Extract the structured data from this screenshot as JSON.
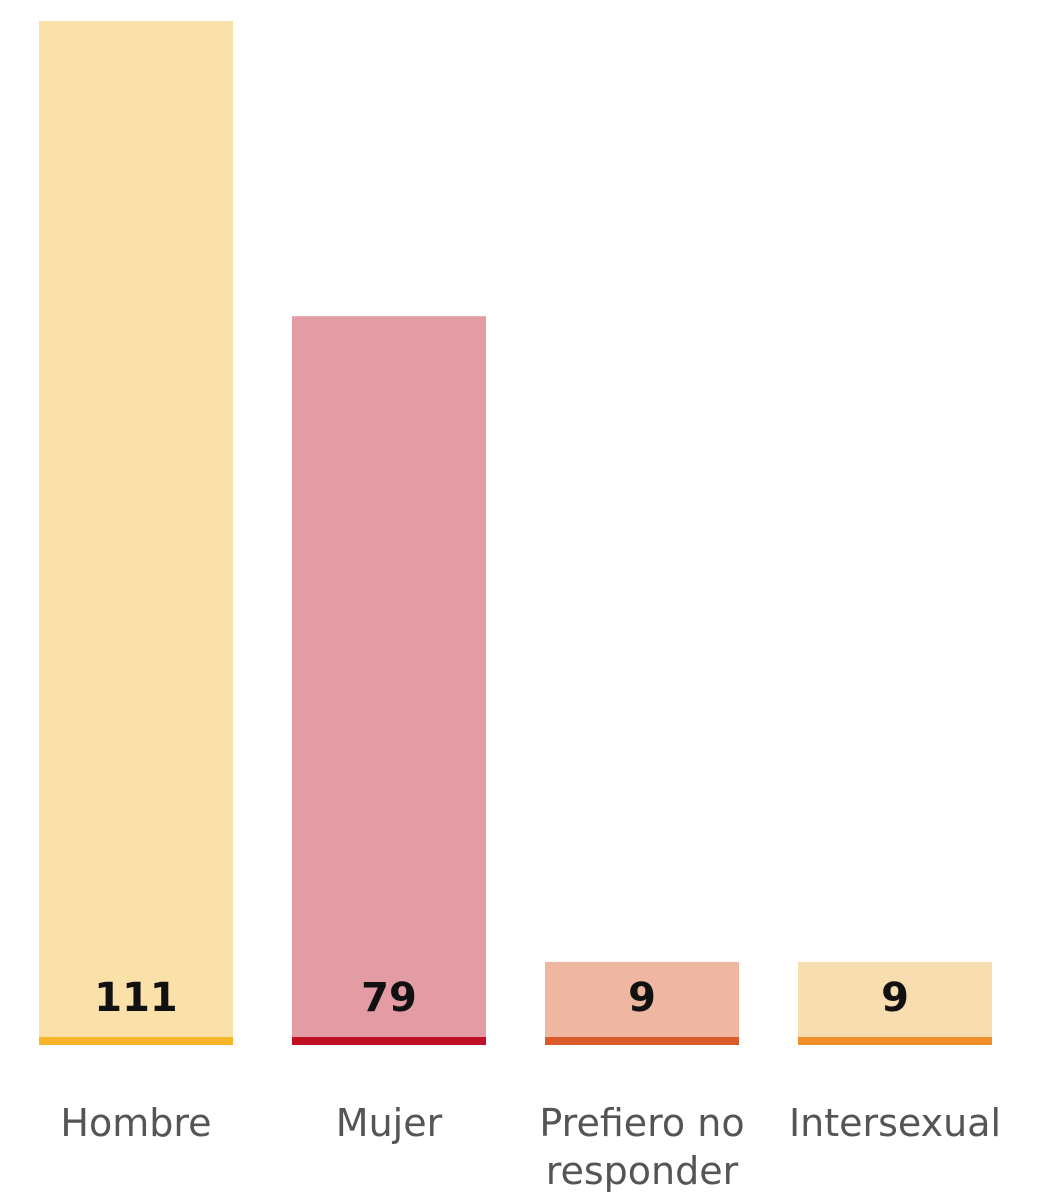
{
  "chart_data": {
    "type": "bar",
    "categories": [
      "Hombre",
      "Mujer",
      "Prefiero no responder",
      "Intersexual"
    ],
    "category_lines": [
      [
        "Hombre"
      ],
      [
        "Mujer"
      ],
      [
        "Prefiero no",
        "responder"
      ],
      [
        "Intersexual"
      ]
    ],
    "values": [
      111,
      79,
      9,
      9
    ],
    "value_labels": [
      "111",
      "79",
      "9",
      "9"
    ],
    "ylim": [
      0,
      111
    ],
    "grid": false,
    "legend": "none",
    "colors": {
      "fill": [
        "#fae0a9",
        "#e39ca4",
        "#efb6a1",
        "#f8ddb1"
      ],
      "baseline": [
        "#f7b52c",
        "#bf1123",
        "#da5a2a",
        "#ee8f2a"
      ]
    }
  }
}
